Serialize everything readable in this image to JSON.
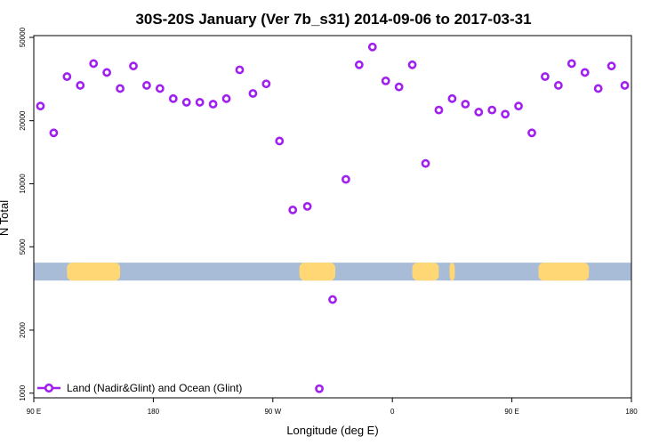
{
  "chart_data": {
    "type": "scatter",
    "title": "30S-20S January (Ver 7b_s31)   2014-09-06 to 2017-03-31",
    "xlabel": "Longitude (deg E)",
    "ylabel": "N Total",
    "x_scale": "linear",
    "y_scale": "log",
    "xlim": [
      90,
      540
    ],
    "ylim": [
      950,
      51000
    ],
    "x_ticks": [
      {
        "value": 90,
        "label": "90 E"
      },
      {
        "value": 180,
        "label": "180"
      },
      {
        "value": 270,
        "label": "90 W"
      },
      {
        "value": 360,
        "label": "0"
      },
      {
        "value": 450,
        "label": "90 E"
      },
      {
        "value": 540,
        "label": "180"
      }
    ],
    "y_ticks": [
      {
        "value": 1000,
        "label": "1000"
      },
      {
        "value": 2000,
        "label": "2000"
      },
      {
        "value": 5000,
        "label": "5000"
      },
      {
        "value": 10000,
        "label": "10000"
      },
      {
        "value": 20000,
        "label": "20000"
      },
      {
        "value": 50000,
        "label": "50000"
      }
    ],
    "grid": false,
    "legend_position": "bottom-left",
    "series": [
      {
        "name": "Land (Nadir&Glint) and Ocean (Glint)",
        "color": "#a020f0",
        "x": [
          95,
          105,
          115,
          125,
          135,
          145,
          155,
          165,
          175,
          185,
          195,
          205,
          215,
          225,
          235,
          245,
          255,
          265,
          275,
          285,
          296,
          305,
          315,
          325,
          335,
          345,
          355,
          365,
          375,
          385,
          395,
          405,
          415,
          425,
          435,
          445,
          455,
          465,
          475,
          485,
          495,
          505,
          515,
          525,
          535
        ],
        "y": [
          23500,
          17500,
          32500,
          29500,
          37500,
          34000,
          28500,
          36500,
          29500,
          28500,
          25500,
          24500,
          24500,
          24000,
          25500,
          35000,
          27000,
          30000,
          16000,
          7500,
          7800,
          1050,
          2800,
          10500,
          37000,
          45000,
          31000,
          29000,
          37000,
          12500,
          22500,
          25500,
          24000,
          22000,
          22500,
          21500,
          23500,
          17500,
          32500,
          29500,
          37500,
          34000,
          28500,
          36500,
          29500
        ]
      }
    ],
    "surface_band": {
      "ocean_color": "#a8bcd8",
      "land_color": "#ffd875",
      "land_ranges": [
        [
          115,
          155
        ],
        [
          290,
          317
        ],
        [
          375,
          395
        ],
        [
          403,
          407
        ],
        [
          470,
          508
        ]
      ]
    }
  }
}
